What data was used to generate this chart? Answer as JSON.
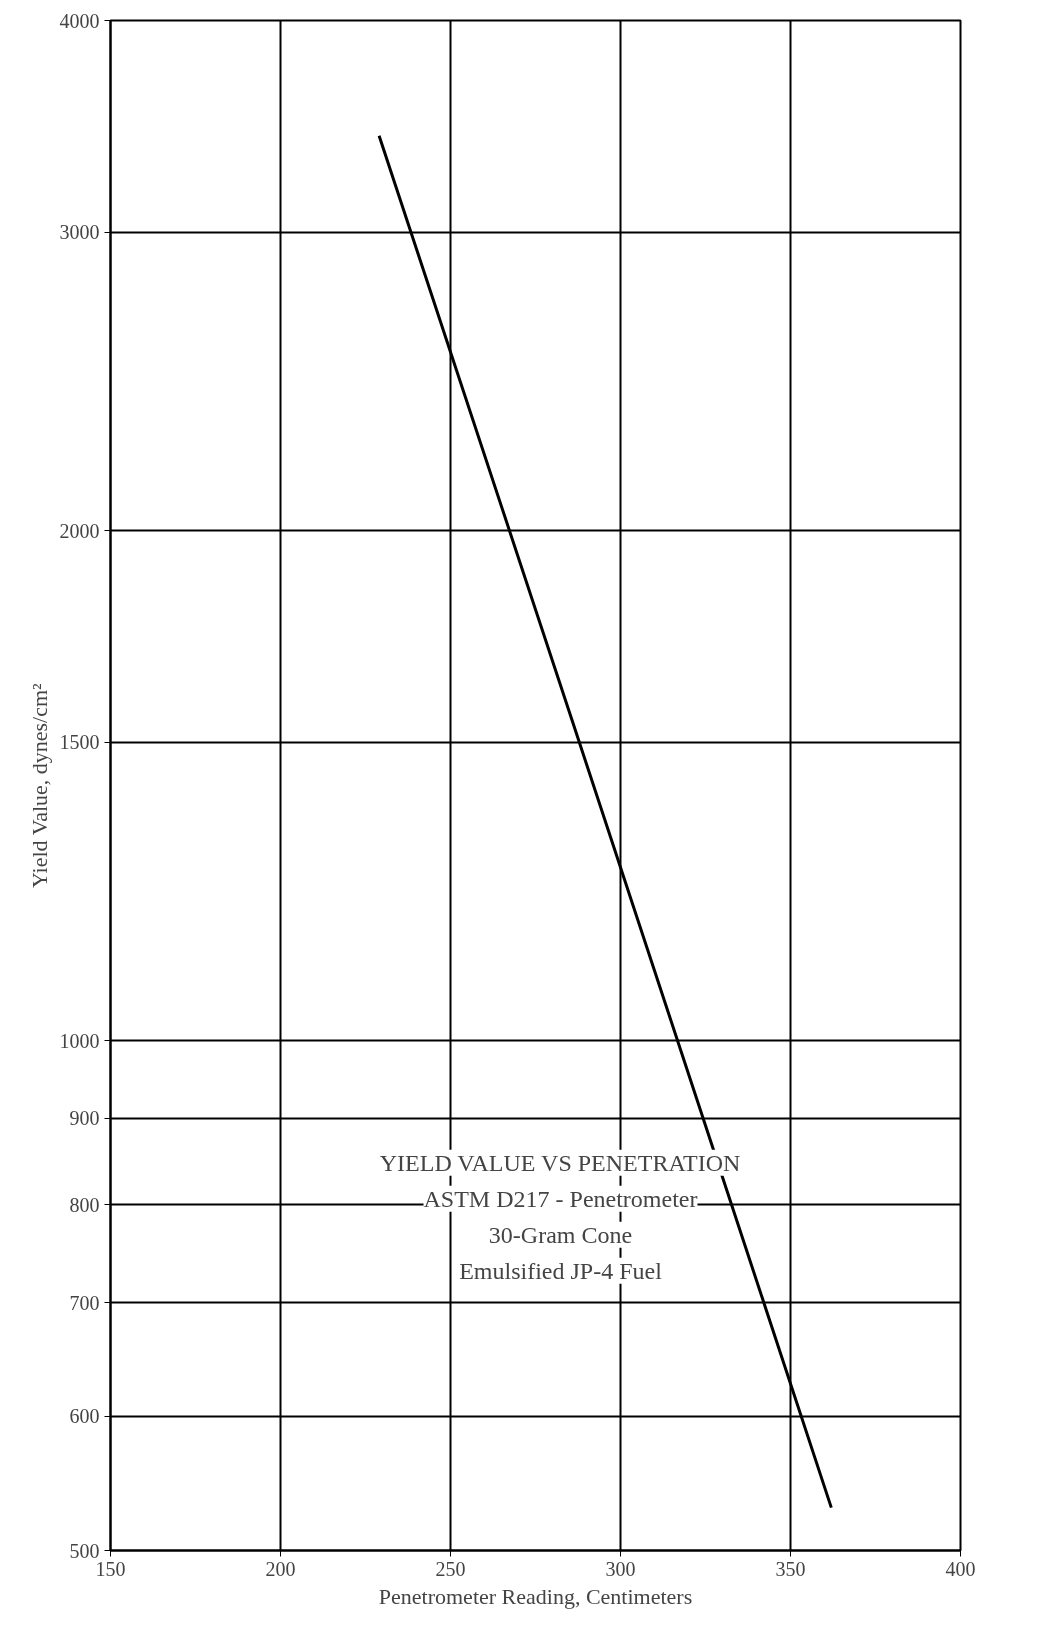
{
  "chart_data": {
    "type": "line",
    "xlabel": "Penetrometer Reading, Centimeters",
    "ylabel": "Yield Value, dynes/cm²",
    "annotations": [
      "YIELD VALUE VS PENETRATION",
      "ASTM D217 - Penetrometer",
      "30-Gram Cone",
      "Emulsified JP-4 Fuel"
    ],
    "log": "y",
    "grid": true,
    "marker": "none",
    "line_style": "solid",
    "xlim": [
      150,
      400
    ],
    "xticks": [
      150,
      200,
      250,
      300,
      350,
      400
    ],
    "ylim": [
      500,
      4000
    ],
    "yticks": [
      500,
      600,
      700,
      800,
      900,
      1000,
      1500,
      2000,
      3000,
      4000
    ],
    "series": [
      {
        "color": "#000000",
        "x": [
          229,
          286,
          362
        ],
        "values": [
          3420,
          1540,
          530
        ]
      }
    ]
  }
}
